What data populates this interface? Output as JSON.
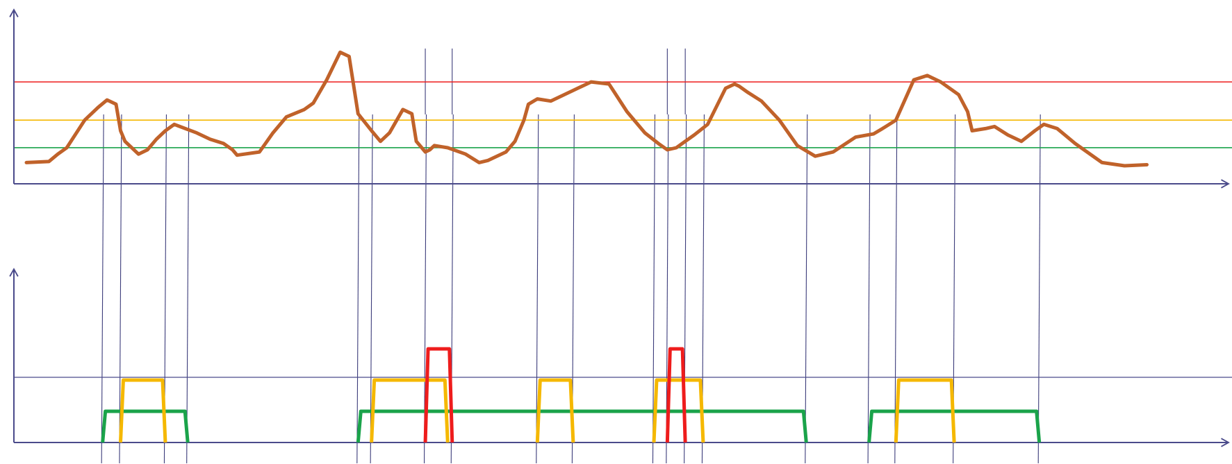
{
  "colors": {
    "axis": "#4a4a8a",
    "signal": "#c0622a",
    "red": "#ee1c1c",
    "yellow": "#f5b800",
    "green": "#1aa34a",
    "guide": "#3b3b7a"
  },
  "thresholds": {
    "red_level": 96,
    "yellow_level": 60,
    "green_level": 34
  },
  "signal": {
    "t": [
      0,
      5,
      7,
      9,
      13,
      16,
      18,
      20,
      21,
      22,
      25,
      27,
      29,
      31,
      33,
      38,
      41,
      44,
      46,
      47,
      52,
      55,
      58,
      62,
      64,
      67,
      70,
      72,
      74,
      77,
      79,
      81,
      84,
      86,
      87,
      88,
      89,
      90,
      91,
      94,
      98,
      101,
      103,
      107,
      109,
      111,
      112,
      114,
      117,
      123,
      126,
      130,
      134,
      138,
      141,
      143,
      145,
      147,
      149,
      152,
      156,
      158,
      159,
      161,
      164,
      168,
      172,
      176,
      180,
      185,
      189,
      191,
      194,
      198,
      201,
      204,
      208,
      210,
      211,
      214,
      216,
      219,
      222,
      225,
      227,
      230,
      234,
      240,
      245,
      250
    ],
    "v": [
      20,
      21,
      28,
      34,
      60,
      72,
      79,
      75,
      50,
      40,
      28,
      32,
      42,
      50,
      56,
      48,
      42,
      38,
      32,
      27,
      30,
      48,
      63,
      70,
      76,
      98,
      124,
      120,
      66,
      50,
      40,
      48,
      70,
      66,
      40,
      35,
      30,
      32,
      36,
      34,
      28,
      20,
      22,
      30,
      40,
      60,
      75,
      80,
      78,
      90,
      96,
      94,
      68,
      48,
      38,
      32,
      34,
      40,
      46,
      56,
      90,
      94,
      92,
      86,
      78,
      60,
      36,
      26,
      30,
      44,
      47,
      52,
      60,
      98,
      102,
      96,
      84,
      68,
      50,
      52,
      54,
      46,
      40,
      50,
      56,
      52,
      38,
      20,
      17,
      18
    ]
  },
  "pulses": {
    "green": [
      [
        17,
        36
      ],
      [
        74,
        174
      ],
      [
        188,
        226
      ]
    ],
    "yellow": [
      [
        21,
        31
      ],
      [
        77,
        94
      ],
      [
        114,
        122
      ],
      [
        140,
        151
      ],
      [
        194,
        207
      ]
    ],
    "red": [
      [
        89,
        95
      ],
      [
        143,
        147
      ]
    ]
  },
  "pulse_levels": {
    "green": 1,
    "yellow": 2,
    "red": 3
  },
  "guide_lines": [
    17,
    21,
    31,
    36,
    74,
    77,
    89,
    95,
    114,
    122,
    140,
    143,
    147,
    151,
    174,
    188,
    194,
    207,
    226
  ]
}
